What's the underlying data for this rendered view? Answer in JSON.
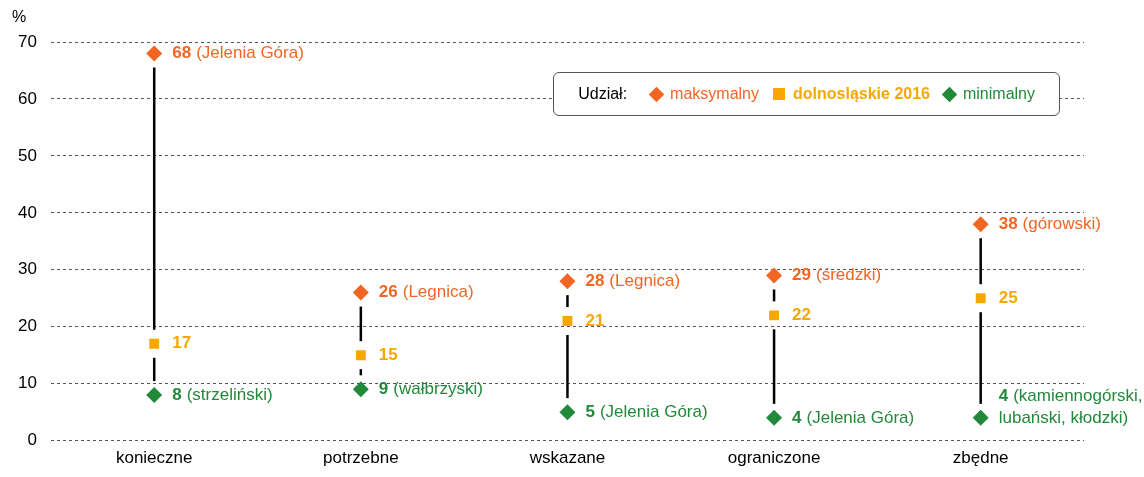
{
  "chart_data": {
    "type": "scatter",
    "ylabel": "%",
    "legend_title": "Udział:",
    "legend": "top right",
    "grid": "y",
    "categories": [
      "konieczne",
      "potrzebne",
      "wskazane",
      "ograniczone",
      "zbędne"
    ],
    "ylim": [
      0,
      70
    ],
    "yticks": [
      0,
      10,
      20,
      30,
      40,
      50,
      60,
      70
    ],
    "series": [
      {
        "name": "maksymalny",
        "color": "#f26522",
        "marker": "diamond",
        "values": [
          68,
          26,
          28,
          29,
          38
        ],
        "value_labels": [
          "68 (Jelenia Góra)",
          "26 (Legnica)",
          "28 (Legnica)",
          "29 (średzki)",
          "38 (górowski)"
        ]
      },
      {
        "name": "dolnosląskie 2016",
        "color": "#f7a800",
        "marker": "square",
        "values": [
          17,
          15,
          21,
          22,
          25
        ],
        "value_labels": [
          "17",
          "15",
          "21",
          "22",
          "25"
        ]
      },
      {
        "name": "minimalny",
        "color": "#22893a",
        "marker": "diamond",
        "values": [
          8,
          9,
          5,
          4,
          4
        ],
        "value_labels": [
          "8 (strzeliński)",
          "9 (wałbrzyski)",
          "5 (Jelenia Góra)",
          "4 (Jelenia Góra)",
          "4 (kamiennogórski, lubański, kłodzki)"
        ]
      }
    ]
  }
}
